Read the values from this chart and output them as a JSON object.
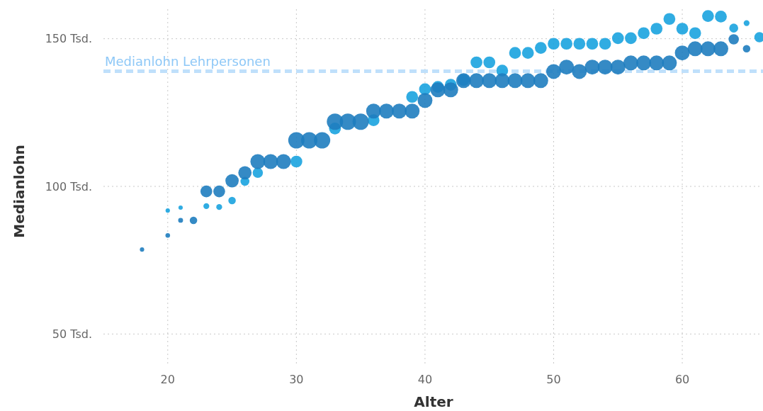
{
  "chart_data": {
    "type": "bubble",
    "xlabel": "Alter",
    "ylabel": "Medianlohn",
    "xlim": [
      15,
      66
    ],
    "ylim": [
      40,
      160
    ],
    "xticks": [
      20,
      30,
      40,
      50,
      60
    ],
    "yticks": [
      {
        "value": 50,
        "label": "50 Tsd."
      },
      {
        "value": 100,
        "label": "100 Tsd."
      },
      {
        "value": 150,
        "label": "150 Tsd."
      }
    ],
    "grid": true,
    "ref_lines": [
      {
        "axis": "y",
        "value": 139,
        "label": "Medianlohn Lehrpersonen",
        "color": "#bfe0fb",
        "line_style": "dashed"
      }
    ],
    "series": [
      {
        "color": "#1aa3df",
        "x": [
          20,
          21,
          23,
          24,
          25,
          26,
          27,
          30,
          33,
          36,
          39,
          40,
          41,
          42,
          43,
          44,
          45,
          46,
          47,
          48,
          49,
          50,
          51,
          52,
          53,
          54,
          55,
          56,
          57,
          58,
          59,
          60,
          61,
          62,
          63,
          64,
          65,
          66
        ],
        "values": [
          91.8,
          92.8,
          93.3,
          93,
          95.2,
          101.7,
          104.6,
          108.4,
          119.6,
          122.4,
          130.3,
          132.9,
          133.7,
          134.4,
          136,
          142,
          142,
          139.2,
          145.2,
          145.2,
          146.9,
          148.3,
          148.3,
          148.3,
          148.3,
          148.3,
          150.2,
          150.2,
          151.9,
          153.4,
          156.7,
          153.4,
          151.9,
          157.7,
          157.5,
          153.6,
          155.3,
          150.5
        ],
        "sizes": [
          0.07,
          0.07,
          0.13,
          0.13,
          0.21,
          0.3,
          0.4,
          0.53,
          0.53,
          0.53,
          0.53,
          0.53,
          0.53,
          0.53,
          0.53,
          0.53,
          0.53,
          0.53,
          0.53,
          0.53,
          0.53,
          0.53,
          0.53,
          0.53,
          0.53,
          0.53,
          0.53,
          0.53,
          0.53,
          0.53,
          0.53,
          0.53,
          0.53,
          0.53,
          0.53,
          0.3,
          0.13,
          0.4
        ]
      },
      {
        "color": "#1f7dbf",
        "x": [
          18,
          20,
          21,
          22,
          23,
          24,
          25,
          26,
          27,
          28,
          29,
          30,
          31,
          32,
          33,
          34,
          35,
          36,
          37,
          38,
          39,
          40,
          41,
          42,
          43,
          44,
          45,
          46,
          47,
          48,
          49,
          50,
          51,
          52,
          53,
          54,
          55,
          56,
          57,
          58,
          59,
          60,
          61,
          62,
          63,
          64,
          65
        ],
        "values": [
          78.6,
          83.4,
          88.5,
          88.5,
          98.3,
          98.3,
          101.9,
          104.6,
          108.4,
          108.4,
          108.4,
          115.6,
          115.6,
          115.6,
          121.9,
          121.9,
          121.9,
          125.5,
          125.5,
          125.5,
          125.5,
          129.1,
          132.7,
          132.7,
          135.8,
          135.8,
          135.8,
          135.8,
          135.8,
          135.8,
          135.8,
          138.9,
          140.4,
          138.9,
          140.4,
          140.4,
          140.4,
          141.8,
          141.8,
          141.8,
          141.8,
          145.2,
          146.6,
          146.6,
          146.6,
          149.8,
          146.6
        ],
        "sizes": [
          0.07,
          0.08,
          0.09,
          0.21,
          0.53,
          0.53,
          0.67,
          0.67,
          0.83,
          0.83,
          0.83,
          1,
          1,
          1,
          1,
          1,
          1,
          0.83,
          0.83,
          0.83,
          0.83,
          0.83,
          0.83,
          0.83,
          0.83,
          0.83,
          0.83,
          0.83,
          0.83,
          0.83,
          0.83,
          0.83,
          0.83,
          0.83,
          0.83,
          0.83,
          0.83,
          0.83,
          0.83,
          0.83,
          0.83,
          0.83,
          0.83,
          0.83,
          0.83,
          0.4,
          0.21
        ]
      }
    ]
  }
}
